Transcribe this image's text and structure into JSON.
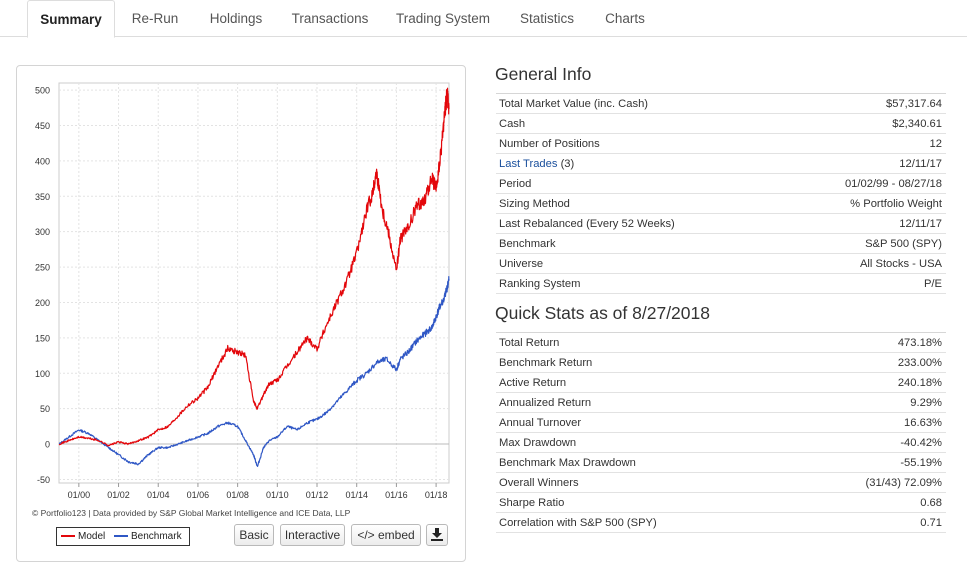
{
  "tabs": [
    {
      "label": "Summary",
      "active": true
    },
    {
      "label": "Re-Run",
      "active": false
    },
    {
      "label": "Holdings",
      "active": false
    },
    {
      "label": "Transactions",
      "active": false
    },
    {
      "label": "Trading System",
      "active": false
    },
    {
      "label": "Statistics",
      "active": false
    },
    {
      "label": "Charts",
      "active": false
    }
  ],
  "chart": {
    "credit": "© Portfolio123 | Data provided by S&P Global Market Intelligence and ICE Data, LLP",
    "legend": {
      "model": "Model",
      "benchmark": "Benchmark"
    },
    "colors": {
      "model": "#e3070b",
      "benchmark": "#2f57c5"
    },
    "buttons": {
      "basic": "Basic",
      "interactive": "Interactive",
      "embed": "</> embed",
      "download_icon": "download-icon"
    }
  },
  "chart_data": {
    "type": "line",
    "ylim": [
      -55,
      510
    ],
    "yticks": [
      -50,
      0,
      50,
      100,
      150,
      200,
      250,
      300,
      350,
      400,
      450,
      500
    ],
    "xtick_labels": [
      "01/00",
      "01/02",
      "01/04",
      "01/06",
      "01/08",
      "01/10",
      "01/12",
      "01/14",
      "01/16",
      "01/18"
    ],
    "xrange": [
      1999.0,
      2018.65
    ],
    "grid": true,
    "legend_position": "bottom-left",
    "series": [
      {
        "name": "Model",
        "color": "#e3070b",
        "x": [
          1999.0,
          1999.5,
          2000.0,
          2000.5,
          2001.0,
          2001.5,
          2002.0,
          2002.5,
          2003.0,
          2003.5,
          2004.0,
          2004.5,
          2005.0,
          2005.5,
          2006.0,
          2006.5,
          2007.0,
          2007.5,
          2008.0,
          2008.4,
          2008.8,
          2009.0,
          2009.3,
          2009.6,
          2010.0,
          2010.5,
          2011.0,
          2011.5,
          2012.0,
          2012.5,
          2013.0,
          2013.5,
          2014.0,
          2014.5,
          2014.8,
          2015.0,
          2015.3,
          2015.6,
          2016.0,
          2016.2,
          2016.6,
          2017.0,
          2017.4,
          2017.8,
          2018.0,
          2018.2,
          2018.4,
          2018.55,
          2018.65
        ],
        "y": [
          0,
          5,
          10,
          8,
          5,
          -2,
          3,
          0,
          5,
          10,
          20,
          25,
          40,
          55,
          65,
          80,
          110,
          135,
          130,
          125,
          60,
          50,
          70,
          85,
          90,
          110,
          130,
          150,
          135,
          170,
          200,
          230,
          270,
          330,
          355,
          385,
          330,
          300,
          245,
          290,
          305,
          335,
          345,
          375,
          360,
          400,
          460,
          495,
          473
        ]
      },
      {
        "name": "Benchmark",
        "color": "#2f57c5",
        "x": [
          1999.0,
          1999.5,
          2000.0,
          2000.5,
          2001.0,
          2001.5,
          2002.0,
          2002.5,
          2003.0,
          2003.5,
          2004.0,
          2004.5,
          2005.0,
          2005.5,
          2006.0,
          2006.5,
          2007.0,
          2007.5,
          2008.0,
          2008.4,
          2008.8,
          2009.0,
          2009.3,
          2009.6,
          2010.0,
          2010.5,
          2011.0,
          2011.5,
          2012.0,
          2012.5,
          2013.0,
          2013.5,
          2014.0,
          2014.5,
          2015.0,
          2015.5,
          2016.0,
          2016.2,
          2016.6,
          2017.0,
          2017.4,
          2017.8,
          2018.0,
          2018.2,
          2018.4,
          2018.55,
          2018.65
        ],
        "y": [
          0,
          10,
          20,
          15,
          5,
          -5,
          -15,
          -25,
          -28,
          -15,
          -5,
          -5,
          0,
          5,
          10,
          15,
          25,
          30,
          25,
          5,
          -15,
          -32,
          -5,
          5,
          10,
          25,
          20,
          30,
          35,
          45,
          60,
          75,
          90,
          100,
          115,
          120,
          105,
          120,
          130,
          145,
          155,
          165,
          180,
          195,
          205,
          220,
          233
        ]
      }
    ]
  },
  "general_info": {
    "title": "General Info",
    "rows": [
      {
        "label": "Total Market Value (inc. Cash)",
        "value": "$57,317.64"
      },
      {
        "label": "Cash",
        "value": "$2,340.61"
      },
      {
        "label": "Number of Positions",
        "value": "12"
      },
      {
        "label": "Last Trades",
        "label_suffix": " (3)",
        "value": "12/11/17"
      },
      {
        "label": "Period",
        "value": "01/02/99 - 08/27/18"
      },
      {
        "label": "Sizing Method",
        "value": "% Portfolio Weight"
      },
      {
        "label": "Last Rebalanced (Every 52 Weeks)",
        "value": "12/11/17"
      },
      {
        "label": "Benchmark",
        "value": "S&P 500 (SPY)"
      },
      {
        "label": "Universe",
        "value": "All Stocks - USA"
      },
      {
        "label": "Ranking System",
        "value": "P/E"
      }
    ]
  },
  "quick_stats": {
    "title": "Quick Stats as of 8/27/2018",
    "rows": [
      {
        "label": "Total Return",
        "value": "473.18%"
      },
      {
        "label": "Benchmark Return",
        "value": "233.00%"
      },
      {
        "label": "Active Return",
        "value": "240.18%"
      },
      {
        "label": "Annualized Return",
        "value": "9.29%"
      },
      {
        "label": "Annual Turnover",
        "value": "16.63%"
      },
      {
        "label": "Max Drawdown",
        "value": "-40.42%"
      },
      {
        "label": "Benchmark Max Drawdown",
        "value": "-55.19%"
      },
      {
        "label": "Overall Winners",
        "value": "(31/43) 72.09%"
      },
      {
        "label": "Sharpe Ratio",
        "value": "0.68"
      },
      {
        "label": "Correlation with S&P 500 (SPY)",
        "value": "0.71"
      }
    ]
  }
}
